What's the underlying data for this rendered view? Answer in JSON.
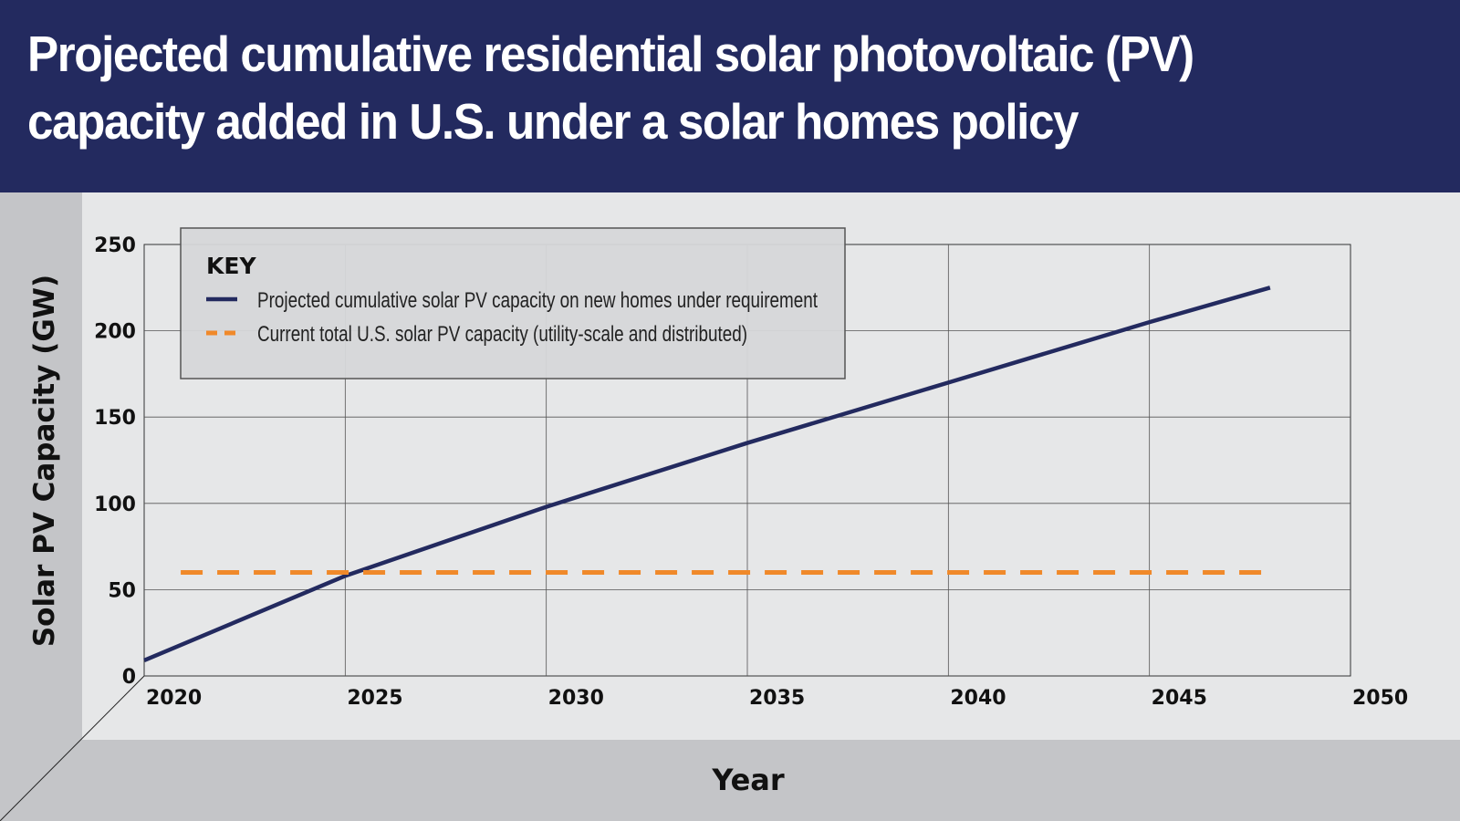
{
  "chart_data": {
    "type": "line",
    "title": "Projected cumulative residential solar photovoltaic (PV) capacity added in U.S. under a solar homes policy",
    "xlabel": "Year",
    "ylabel": "Solar PV Capacity (GW)",
    "xlim": [
      2020,
      2050
    ],
    "ylim": [
      0,
      250
    ],
    "x_ticks": [
      "2020",
      "2025",
      "2030",
      "2035",
      "2040",
      "2045",
      "2050"
    ],
    "y_ticks": [
      "0",
      "50",
      "100",
      "150",
      "200",
      "250"
    ],
    "grid": true,
    "legend_title": "KEY",
    "legend_position": "top-left",
    "series": [
      {
        "name": "Projected cumulative solar PV capacity on new homes under requirement",
        "style": "solid",
        "color": "#232a5f",
        "x": [
          2020,
          2025,
          2030,
          2035,
          2040,
          2045,
          2048
        ],
        "values": [
          9,
          58,
          98,
          135,
          170,
          205,
          225
        ]
      },
      {
        "name": "Current total U.S. solar PV capacity (utility-scale and distributed)",
        "style": "dashed",
        "color": "#f0892a",
        "x": [
          2021,
          2048
        ],
        "values": [
          60,
          60
        ]
      }
    ]
  },
  "colors": {
    "header_bg": "#232a5f",
    "plot_bg": "#e6e7e8",
    "frame_bg": "#c4c5c8"
  }
}
